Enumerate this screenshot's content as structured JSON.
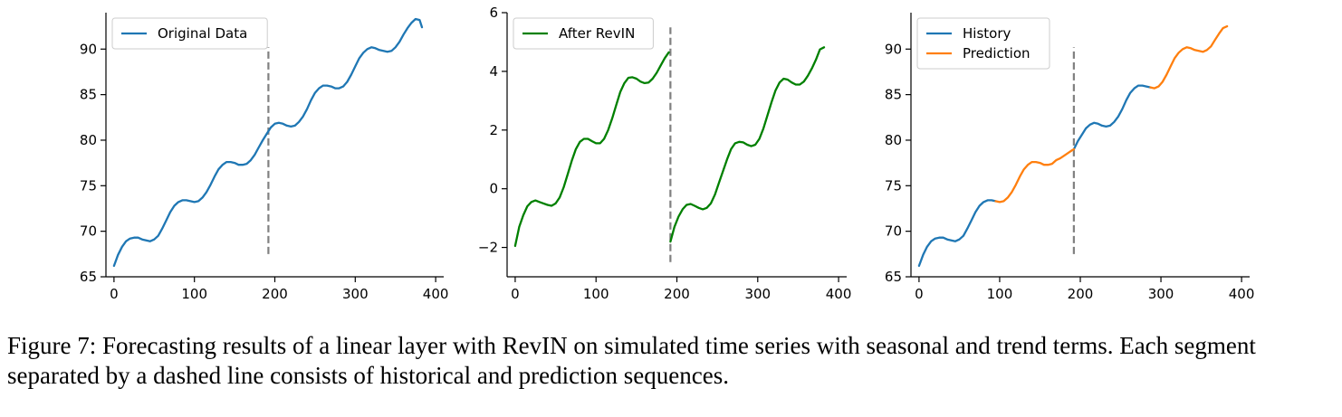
{
  "caption": "Figure 7: Forecasting results of a linear layer with RevIN on simulated time series with seasonal and trend terms. Each segment separated by a dashed line consists of historical and prediction sequences.",
  "colors": {
    "blue": "#1f77b4",
    "orange": "#ff7f0e",
    "green": "#008000",
    "divider": "#808080"
  },
  "chart_data": [
    {
      "type": "line",
      "title": "",
      "xlabel": "",
      "ylabel": "",
      "xlim": [
        -10,
        410
      ],
      "ylim": [
        65,
        94
      ],
      "xticks": [
        0,
        100,
        200,
        300,
        400
      ],
      "yticks": [
        65,
        70,
        75,
        80,
        85,
        90
      ],
      "legend_position": "top-left",
      "divider_x": 192,
      "divider_y": [
        67.5,
        90.2
      ],
      "series": [
        {
          "name": "Original Data",
          "color": "#1f77b4",
          "segments": [
            {
              "x": [
                0,
                5,
                10,
                15,
                20,
                25,
                30,
                35,
                40,
                45,
                50,
                55,
                60,
                65,
                70,
                75,
                80,
                85,
                90,
                95,
                100,
                105,
                110,
                115,
                120,
                125,
                130,
                135,
                140,
                145,
                150,
                155,
                160,
                165,
                170,
                175,
                180,
                185,
                190,
                195,
                200,
                205,
                210,
                215,
                220,
                225,
                230,
                235,
                240,
                245,
                250,
                255,
                260,
                265,
                270,
                275,
                280,
                285,
                290,
                295,
                300,
                305,
                310,
                315,
                320,
                325,
                330,
                335,
                340,
                345,
                350,
                355,
                360,
                365,
                370,
                375,
                380,
                383
              ],
              "y": [
                66.2,
                67.4,
                68.3,
                68.9,
                69.2,
                69.3,
                69.3,
                69.1,
                69.0,
                68.9,
                69.1,
                69.5,
                70.3,
                71.2,
                72.1,
                72.8,
                73.2,
                73.4,
                73.4,
                73.3,
                73.2,
                73.3,
                73.7,
                74.3,
                75.1,
                76.0,
                76.8,
                77.3,
                77.6,
                77.6,
                77.5,
                77.3,
                77.3,
                77.4,
                77.8,
                78.4,
                79.2,
                80.0,
                80.7,
                81.4,
                81.8,
                81.9,
                81.8,
                81.6,
                81.5,
                81.6,
                82.0,
                82.6,
                83.4,
                84.4,
                85.2,
                85.7,
                86.0,
                86.0,
                85.9,
                85.7,
                85.7,
                85.9,
                86.4,
                87.2,
                88.1,
                89.0,
                89.6,
                90.0,
                90.2,
                90.1,
                89.9,
                89.8,
                89.7,
                89.8,
                90.2,
                90.8,
                91.6,
                92.3,
                92.9,
                93.3,
                93.2,
                92.4
              ]
            }
          ]
        }
      ]
    },
    {
      "type": "line",
      "title": "",
      "xlabel": "",
      "ylabel": "",
      "xlim": [
        -10,
        410
      ],
      "ylim": [
        -3,
        6
      ],
      "xticks": [
        0,
        100,
        200,
        300,
        400
      ],
      "yticks": [
        -2,
        0,
        2,
        4,
        6
      ],
      "legend_position": "top-left",
      "divider_x": 192,
      "divider_y": [
        -2.5,
        5.5
      ],
      "series": [
        {
          "name": "After RevIN",
          "color": "#008000",
          "segments": [
            {
              "x": [
                0,
                5,
                10,
                15,
                20,
                25,
                30,
                35,
                40,
                45,
                50,
                55,
                60,
                65,
                70,
                75,
                80,
                85,
                90,
                95,
                100,
                105,
                110,
                115,
                120,
                125,
                130,
                135,
                140,
                145,
                150,
                155,
                160,
                165,
                170,
                175,
                180,
                185,
                190
              ],
              "y": [
                -1.95,
                -1.3,
                -0.9,
                -0.6,
                -0.45,
                -0.4,
                -0.45,
                -0.5,
                -0.55,
                -0.58,
                -0.5,
                -0.3,
                0.05,
                0.5,
                0.95,
                1.35,
                1.6,
                1.7,
                1.7,
                1.62,
                1.55,
                1.55,
                1.7,
                2.0,
                2.4,
                2.85,
                3.3,
                3.6,
                3.78,
                3.8,
                3.75,
                3.65,
                3.6,
                3.62,
                3.75,
                3.95,
                4.2,
                4.45,
                4.65
              ]
            },
            {
              "x": [
                192,
                197,
                202,
                207,
                212,
                217,
                222,
                227,
                232,
                237,
                242,
                247,
                252,
                257,
                262,
                267,
                272,
                277,
                282,
                287,
                292,
                297,
                302,
                307,
                312,
                317,
                322,
                327,
                332,
                337,
                342,
                347,
                352,
                357,
                362,
                367,
                372,
                377,
                382
              ],
              "y": [
                -1.8,
                -1.3,
                -0.95,
                -0.7,
                -0.55,
                -0.52,
                -0.58,
                -0.65,
                -0.7,
                -0.65,
                -0.5,
                -0.2,
                0.2,
                0.6,
                1.0,
                1.35,
                1.55,
                1.6,
                1.58,
                1.5,
                1.45,
                1.5,
                1.7,
                2.05,
                2.5,
                2.95,
                3.35,
                3.62,
                3.75,
                3.72,
                3.62,
                3.55,
                3.55,
                3.65,
                3.85,
                4.1,
                4.4,
                4.75,
                4.82
              ]
            }
          ]
        }
      ]
    },
    {
      "type": "line",
      "title": "",
      "xlabel": "",
      "ylabel": "",
      "xlim": [
        -10,
        410
      ],
      "ylim": [
        65,
        94
      ],
      "xticks": [
        0,
        100,
        200,
        300,
        400
      ],
      "yticks": [
        65,
        70,
        75,
        80,
        85,
        90
      ],
      "legend_position": "top-left",
      "divider_x": 192,
      "divider_y": [
        67.5,
        90.2
      ],
      "series": [
        {
          "name": "History",
          "color": "#1f77b4",
          "segments": [
            {
              "x": [
                0,
                5,
                10,
                15,
                20,
                25,
                30,
                35,
                40,
                45,
                50,
                55,
                60,
                65,
                70,
                75,
                80,
                85,
                90,
                95
              ],
              "y": [
                66.2,
                67.4,
                68.3,
                68.9,
                69.2,
                69.3,
                69.3,
                69.1,
                69.0,
                68.9,
                69.1,
                69.5,
                70.3,
                71.2,
                72.1,
                72.8,
                73.2,
                73.4,
                73.4,
                73.3
              ]
            },
            {
              "x": [
                192,
                197,
                202,
                207,
                212,
                217,
                222,
                227,
                232,
                237,
                242,
                247,
                252,
                257,
                262,
                267,
                272,
                277,
                282,
                287
              ],
              "y": [
                79.0,
                79.9,
                80.6,
                81.3,
                81.7,
                81.9,
                81.8,
                81.6,
                81.5,
                81.6,
                82.0,
                82.6,
                83.4,
                84.4,
                85.2,
                85.7,
                86.0,
                86.0,
                85.9,
                85.8
              ]
            }
          ]
        },
        {
          "name": "Prediction",
          "color": "#ff7f0e",
          "segments": [
            {
              "x": [
                95,
                100,
                105,
                110,
                115,
                120,
                125,
                130,
                135,
                140,
                145,
                150,
                155,
                160,
                165,
                170,
                175,
                180,
                185,
                190,
                192
              ],
              "y": [
                73.3,
                73.2,
                73.3,
                73.7,
                74.3,
                75.1,
                76.0,
                76.8,
                77.3,
                77.6,
                77.6,
                77.5,
                77.3,
                77.3,
                77.4,
                77.8,
                78.0,
                78.3,
                78.6,
                78.9,
                79.0
              ]
            },
            {
              "x": [
                287,
                292,
                297,
                302,
                307,
                312,
                317,
                322,
                327,
                332,
                337,
                342,
                347,
                352,
                357,
                362,
                367,
                372,
                377,
                382
              ],
              "y": [
                85.8,
                85.7,
                85.9,
                86.4,
                87.2,
                88.1,
                89.0,
                89.6,
                90.0,
                90.2,
                90.1,
                89.9,
                89.8,
                89.7,
                89.9,
                90.3,
                91.0,
                91.7,
                92.3,
                92.5
              ]
            }
          ]
        }
      ]
    }
  ]
}
